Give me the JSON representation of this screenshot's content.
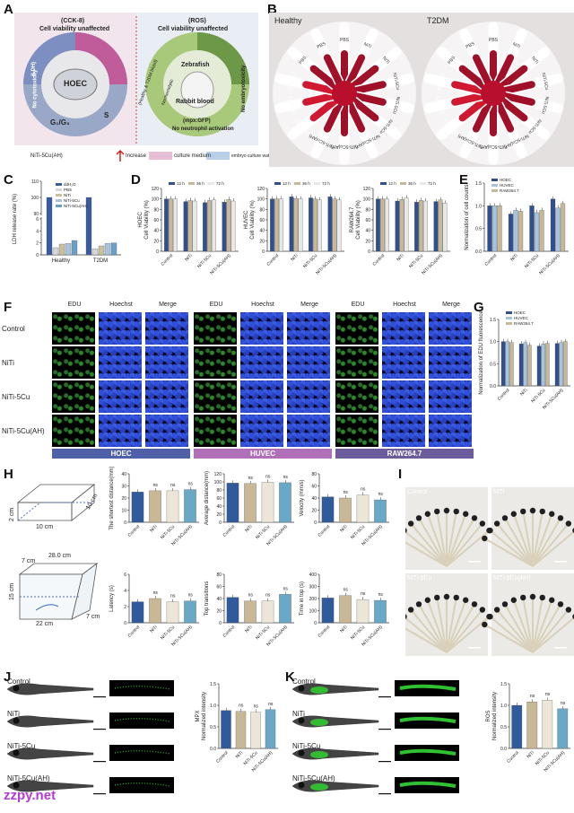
{
  "panels": {
    "A": "A",
    "B": "B",
    "C": "C",
    "D": "D",
    "E": "E",
    "F": "F",
    "G": "G",
    "H": "H",
    "I": "I",
    "J": "J",
    "K": "K"
  },
  "panelA": {
    "left_title": "(CCK-8)",
    "left_sub": "Cell viability unaffected",
    "ldh": "(LDH)",
    "no_cyto": "No cytotoxicity",
    "center": "HOEC",
    "g1": "G₁/G₃",
    "s": "S",
    "right_title": "(ROS)",
    "right_sub": "Cell viability unaffected",
    "zebrafish": "Zebrafish",
    "rabbit": "Rabbit blood",
    "healthy_t2dm": "(Healthy & T2DM blood)",
    "hemolysis": "Nonhemolytic",
    "mpx": "(mpx:GFP)",
    "neutro": "No neutrophil activation",
    "embryo": "No embryotoxicity",
    "legend_material": "NiTi-5Cu(AH)",
    "legend_increase": "Increase",
    "legend_culture": "culture medium",
    "legend_embryo": "embryo culture water"
  },
  "panelB": {
    "healthy": "Healthy",
    "t2dm": "T2DM",
    "tubes": [
      "PBS",
      "NiTi",
      "NiTi",
      "NiTi-5Cu",
      "NiTi-5Cu",
      "NiTi-5Cu",
      "NiTi-5Cu(AH)",
      "NiTi-5Cu(AH)",
      "NiTi-5Cu(AH)",
      "ddH₂O",
      "ddH₂O",
      "ddH₂O",
      "PBS",
      "PBS"
    ]
  },
  "chartC": {
    "type": "bar",
    "ylabel": "LDH release rate (%)",
    "categories": [
      "Healthy",
      "T2DM"
    ],
    "series": [
      {
        "name": "ddH₂O",
        "color": "#3a5ba0",
        "values": [
          100,
          100
        ]
      },
      {
        "name": "PBS",
        "color": "#d8d8d8",
        "values": [
          1.2,
          1.0
        ]
      },
      {
        "name": "NiTi",
        "color": "#c8c0a0",
        "values": [
          1.8,
          1.5
        ]
      },
      {
        "name": "NiTi-5Cu",
        "color": "#a8c4dc",
        "values": [
          1.9,
          1.9
        ]
      },
      {
        "name": "NiTi-5Cu(AH)",
        "color": "#6aa0c8",
        "values": [
          2.4,
          2.0
        ]
      }
    ],
    "yticks": [
      "0",
      "2",
      "4",
      "6",
      "90",
      "100",
      "110"
    ]
  },
  "chartD": {
    "type": "bar",
    "legend": [
      "12 h",
      "36 h",
      "72 h"
    ],
    "colors": [
      "#2f4f8f",
      "#c8b89a",
      "#e8e8e8"
    ],
    "categories": [
      "Control",
      "NiTi",
      "NiTi-5Cu",
      "NiTi-5Cu(AH)"
    ],
    "charts": [
      {
        "ylabel": "HOEC\nCell Viability (%)",
        "values": [
          [
            100,
            100,
            100
          ],
          [
            95,
            97,
            96
          ],
          [
            93,
            97,
            98
          ],
          [
            94,
            99,
            96
          ]
        ]
      },
      {
        "ylabel": "HUVEC\nCell Viability (%)",
        "values": [
          [
            100,
            100,
            100
          ],
          [
            104,
            101,
            100
          ],
          [
            102,
            100,
            98
          ],
          [
            104,
            100,
            98
          ]
        ]
      },
      {
        "ylabel": "RAW264.7\nCell Viability (%)",
        "values": [
          [
            100,
            100,
            100
          ],
          [
            96,
            99,
            102
          ],
          [
            94,
            97,
            96
          ],
          [
            95,
            98,
            92
          ]
        ]
      }
    ],
    "yticks": [
      "0",
      "20",
      "40",
      "60",
      "80",
      "100",
      "120"
    ]
  },
  "chartE": {
    "type": "bar",
    "ylabel": "Normalization of cell counts",
    "legend": [
      "HOEC",
      "HUVEC",
      "RAW264.7"
    ],
    "colors": [
      "#2f4f8f",
      "#a8c4dc",
      "#c8b89a"
    ],
    "categories": [
      "Control",
      "NiTi",
      "NiTi-5Cu",
      "NiTi-5Cu(AH)"
    ],
    "values": [
      [
        1.0,
        1.0,
        1.0
      ],
      [
        0.82,
        0.9,
        0.88
      ],
      [
        1.0,
        0.85,
        0.9
      ],
      [
        1.15,
        0.95,
        1.05
      ]
    ],
    "yticks": [
      "0.0",
      "0.5",
      "1.0",
      "1.5"
    ]
  },
  "panelF": {
    "rows": [
      "Control",
      "NiTi",
      "NiTi-5Cu",
      "NiTi-5Cu(AH)"
    ],
    "cols": [
      "EDU",
      "Hoechst",
      "Merge",
      "EDU",
      "Hoechst",
      "Merge",
      "EDU",
      "Hoechst",
      "Merge"
    ],
    "groups": [
      "HOEC",
      "HUVEC",
      "RAW264.7"
    ],
    "group_colors": [
      "#5060a8",
      "#b070b8",
      "#6c5c9c"
    ]
  },
  "chartG": {
    "type": "bar",
    "ylabel": "Normalization of EDU fluorescence",
    "legend": [
      "HOEC",
      "HUVEC",
      "RAW264.7"
    ],
    "colors": [
      "#2f4f8f",
      "#a8c4dc",
      "#c8b89a"
    ],
    "categories": [
      "Control",
      "NiTi",
      "NiTi-5Cu",
      "NiTi-5Cu(AH)"
    ],
    "values": [
      [
        1.0,
        1.0,
        0.98
      ],
      [
        0.95,
        0.98,
        0.92
      ],
      [
        0.9,
        0.95,
        0.96
      ],
      [
        0.96,
        0.98,
        1.0
      ]
    ],
    "yticks": [
      "0.0",
      "0.5",
      "1.0",
      "1.5"
    ]
  },
  "panelH": {
    "tank1": {
      "w": "10 cm",
      "d": "10 cm",
      "h": "2 cm"
    },
    "tank2": {
      "top": "28.0 cm",
      "left": "7 cm",
      "h": "15 cm",
      "bottom": "22 cm",
      "side": "7 cm"
    },
    "categories": [
      "Control",
      "NiTi",
      "NiTi-5Cu",
      "NiTi-5Cu(AH)"
    ],
    "colors": [
      "#2f5a9c",
      "#c9b896",
      "#ece6d8",
      "#6aa8c8"
    ],
    "charts": [
      {
        "ylabel": "The shortest distance(mm)",
        "yticks": [
          "0",
          "10",
          "20",
          "30",
          "40"
        ],
        "ymax": 40,
        "values": [
          25,
          26,
          26,
          27
        ]
      },
      {
        "ylabel": "Average distance(mm)",
        "yticks": [
          "0",
          "20",
          "40",
          "60",
          "80",
          "100",
          "120"
        ],
        "ymax": 120,
        "values": [
          97,
          96,
          99,
          98
        ]
      },
      {
        "ylabel": "Velocity (mm/s)",
        "yticks": [
          "0",
          "20",
          "40",
          "60",
          "80"
        ],
        "ymax": 80,
        "values": [
          42,
          40,
          45,
          37
        ]
      },
      {
        "ylabel": "Latency (s)",
        "yticks": [
          "0",
          "2",
          "4",
          "6"
        ],
        "ymax": 6,
        "values": [
          2.6,
          3.0,
          2.6,
          2.7
        ]
      },
      {
        "ylabel": "Top transitions",
        "yticks": [
          "0",
          "20",
          "40",
          "60",
          "80"
        ],
        "ymax": 80,
        "values": [
          42,
          36,
          36,
          47
        ]
      },
      {
        "ylabel": "Time in top (s)",
        "yticks": [
          "0",
          "100",
          "200",
          "300",
          "400"
        ],
        "ymax": 400,
        "values": [
          205,
          225,
          192,
          185
        ]
      }
    ],
    "ns": "ns"
  },
  "panelI": {
    "labels": [
      "Control",
      "NiTi",
      "NiTi-5Cu",
      "NiTi-5Cu(AH)"
    ]
  },
  "panelJ": {
    "labels": [
      "Control",
      "NiTi",
      "NiTi-5Cu",
      "NiTi-5Cu(AH)"
    ],
    "chart": {
      "type": "bar",
      "ylabel": "MPX\nNormalized intensity",
      "categories": [
        "Control",
        "NiTi",
        "NiTi-5Cu",
        "NiTi-5Cu(AH)"
      ],
      "values": [
        0.88,
        0.86,
        0.84,
        0.9
      ],
      "yticks": [
        "0.0",
        "0.5",
        "1.0",
        "1.5"
      ]
    }
  },
  "panelK": {
    "labels": [
      "Control",
      "NiTi",
      "NiTi-5Cu",
      "NiTi-5Cu(AH)"
    ],
    "chart": {
      "type": "bar",
      "ylabel": "ROS\nNormalized intensity",
      "categories": [
        "Control",
        "NiTi",
        "NiTi-5Cu",
        "NiTi-5Cu(AH)"
      ],
      "values": [
        1.0,
        1.08,
        1.12,
        0.92
      ],
      "yticks": [
        "0.0",
        "0.5",
        "1.0",
        "1.5"
      ]
    }
  },
  "watermark": "zzpy.net"
}
